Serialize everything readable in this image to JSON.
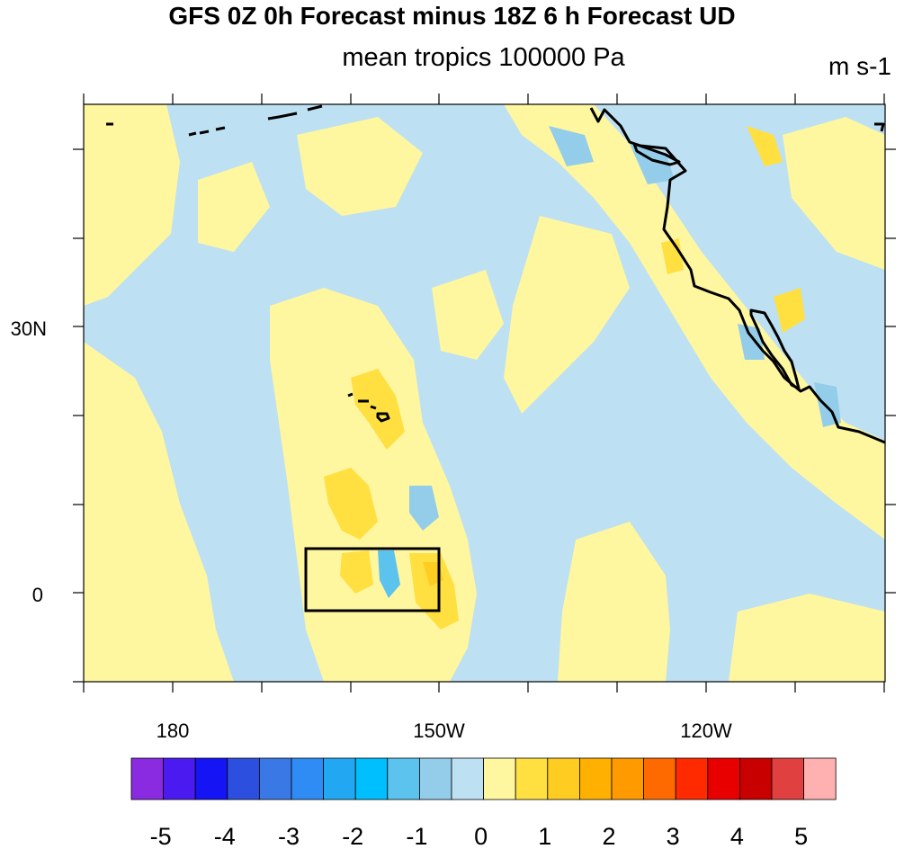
{
  "title": "GFS 0Z 0h Forecast minus 18Z 6 h Forecast UD",
  "subtitle": "mean tropics 100000 Pa",
  "units": "m s-1",
  "axes": {
    "lat_labels": [
      "30N",
      "0"
    ],
    "lon_labels": [
      "180",
      "150W",
      "120W"
    ],
    "lat_values": [
      30,
      0
    ],
    "lon_values": [
      180,
      -150,
      -120
    ]
  },
  "colorbar": {
    "labels": [
      "-5",
      "-4",
      "-3",
      "-2",
      "-1",
      "0",
      "1",
      "2",
      "3",
      "4",
      "5"
    ],
    "colors": [
      "#8a2be2",
      "#4a1af0",
      "#1414f5",
      "#2d4fe0",
      "#3a78e6",
      "#2f8cf5",
      "#22a8f2",
      "#00bfff",
      "#5cc3ef",
      "#94cdea",
      "#bde1f2",
      "#fff6a0",
      "#ffe040",
      "#ffcc22",
      "#ffb000",
      "#ff9a00",
      "#ff6a00",
      "#ff2a00",
      "#e80000",
      "#c80000",
      "#e04040",
      "#ffb0b0"
    ]
  },
  "colors": {
    "field_negative_light": "#bde1f2",
    "field_positive_light": "#fff6a0",
    "field_positive_mid": "#ffe040",
    "field_negative_mid": "#94cdea"
  }
}
